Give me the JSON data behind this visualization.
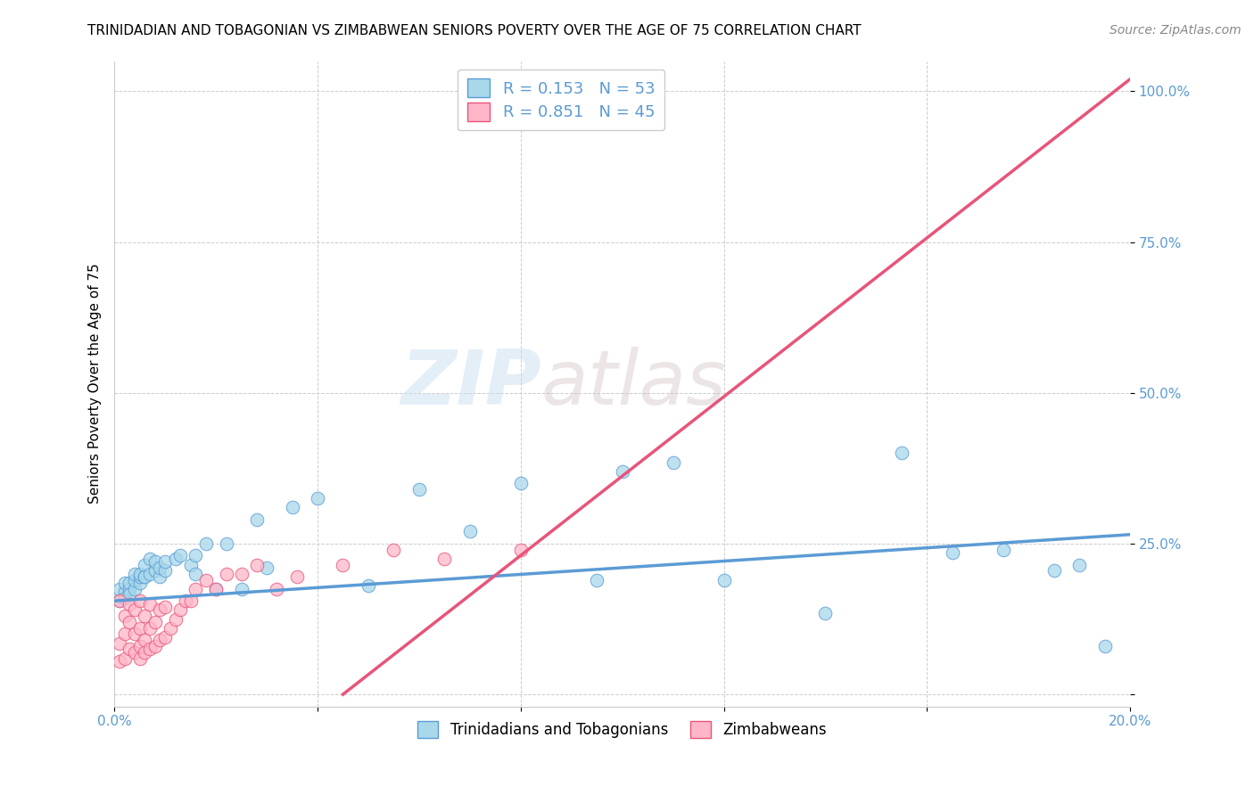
{
  "title": "TRINIDADIAN AND TOBAGONIAN VS ZIMBABWEAN SENIORS POVERTY OVER THE AGE OF 75 CORRELATION CHART",
  "source": "Source: ZipAtlas.com",
  "ylabel": "Seniors Poverty Over the Age of 75",
  "xlim": [
    0.0,
    0.2
  ],
  "ylim": [
    -0.02,
    1.05
  ],
  "xticks": [
    0.0,
    0.04,
    0.08,
    0.12,
    0.16,
    0.2
  ],
  "ytick_positions": [
    0.0,
    0.25,
    0.5,
    0.75,
    1.0
  ],
  "legend1_R": "0.153",
  "legend1_N": "53",
  "legend2_R": "0.851",
  "legend2_N": "45",
  "blue_color": "#a8d8ea",
  "pink_color": "#ffb6c8",
  "blue_line_color": "#5b9bd5",
  "pink_line_color": "#e8547a",
  "label_color": "#5b9bd5",
  "watermark_zip": "ZIP",
  "watermark_atlas": "atlas",
  "background_color": "#ffffff",
  "tt_scatter_x": [
    0.001,
    0.001,
    0.002,
    0.002,
    0.002,
    0.003,
    0.003,
    0.003,
    0.004,
    0.004,
    0.004,
    0.005,
    0.005,
    0.005,
    0.006,
    0.006,
    0.006,
    0.007,
    0.007,
    0.008,
    0.008,
    0.009,
    0.009,
    0.01,
    0.01,
    0.012,
    0.013,
    0.015,
    0.016,
    0.016,
    0.018,
    0.02,
    0.022,
    0.025,
    0.028,
    0.03,
    0.035,
    0.04,
    0.05,
    0.06,
    0.07,
    0.08,
    0.095,
    0.1,
    0.11,
    0.12,
    0.14,
    0.155,
    0.165,
    0.175,
    0.185,
    0.19,
    0.195
  ],
  "tt_scatter_y": [
    0.155,
    0.175,
    0.17,
    0.185,
    0.16,
    0.175,
    0.185,
    0.165,
    0.175,
    0.19,
    0.2,
    0.185,
    0.195,
    0.2,
    0.195,
    0.215,
    0.195,
    0.2,
    0.225,
    0.205,
    0.22,
    0.195,
    0.21,
    0.205,
    0.22,
    0.225,
    0.23,
    0.215,
    0.23,
    0.2,
    0.25,
    0.175,
    0.25,
    0.175,
    0.29,
    0.21,
    0.31,
    0.325,
    0.18,
    0.34,
    0.27,
    0.35,
    0.19,
    0.37,
    0.385,
    0.19,
    0.135,
    0.4,
    0.235,
    0.24,
    0.205,
    0.215,
    0.08
  ],
  "zim_scatter_x": [
    0.001,
    0.001,
    0.001,
    0.002,
    0.002,
    0.002,
    0.003,
    0.003,
    0.003,
    0.004,
    0.004,
    0.004,
    0.005,
    0.005,
    0.005,
    0.005,
    0.006,
    0.006,
    0.006,
    0.007,
    0.007,
    0.007,
    0.008,
    0.008,
    0.009,
    0.009,
    0.01,
    0.01,
    0.011,
    0.012,
    0.013,
    0.014,
    0.015,
    0.016,
    0.018,
    0.02,
    0.022,
    0.025,
    0.028,
    0.032,
    0.036,
    0.045,
    0.055,
    0.065,
    0.08
  ],
  "zim_scatter_y": [
    0.055,
    0.155,
    0.085,
    0.06,
    0.1,
    0.13,
    0.075,
    0.12,
    0.15,
    0.07,
    0.1,
    0.14,
    0.06,
    0.08,
    0.11,
    0.155,
    0.07,
    0.09,
    0.13,
    0.075,
    0.11,
    0.15,
    0.08,
    0.12,
    0.09,
    0.14,
    0.095,
    0.145,
    0.11,
    0.125,
    0.14,
    0.155,
    0.155,
    0.175,
    0.19,
    0.175,
    0.2,
    0.2,
    0.215,
    0.175,
    0.195,
    0.215,
    0.24,
    0.225,
    0.24
  ],
  "tt_trend_x": [
    0.0,
    0.2
  ],
  "tt_trend_y": [
    0.155,
    0.265
  ],
  "zim_trend_x": [
    0.045,
    0.2
  ],
  "zim_trend_y": [
    0.0,
    1.02
  ],
  "title_fontsize": 11,
  "axis_label_fontsize": 11,
  "tick_fontsize": 11,
  "source_fontsize": 10
}
